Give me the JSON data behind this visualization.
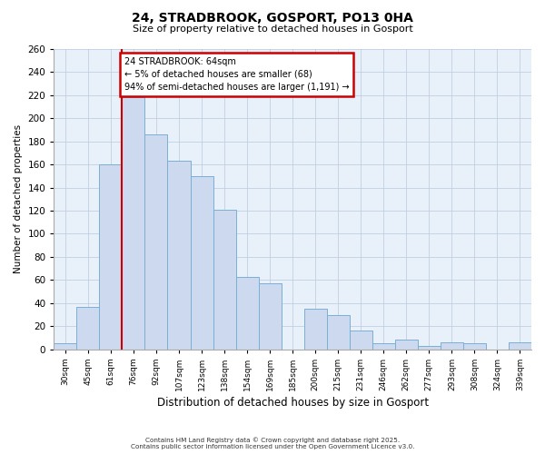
{
  "title": "24, STRADBROOK, GOSPORT, PO13 0HA",
  "subtitle": "Size of property relative to detached houses in Gosport",
  "xlabel": "Distribution of detached houses by size in Gosport",
  "ylabel": "Number of detached properties",
  "bin_labels": [
    "30sqm",
    "45sqm",
    "61sqm",
    "76sqm",
    "92sqm",
    "107sqm",
    "123sqm",
    "138sqm",
    "154sqm",
    "169sqm",
    "185sqm",
    "200sqm",
    "215sqm",
    "231sqm",
    "246sqm",
    "262sqm",
    "277sqm",
    "293sqm",
    "308sqm",
    "324sqm",
    "339sqm"
  ],
  "bar_values": [
    5,
    37,
    160,
    218,
    186,
    163,
    150,
    121,
    63,
    57,
    0,
    35,
    30,
    16,
    5,
    8,
    3,
    6,
    5,
    0,
    6
  ],
  "bar_color": "#ccd9ee",
  "bar_edge_color": "#7bafd4",
  "annotation_title": "24 STRADBROOK: 64sqm",
  "annotation_line1": "← 5% of detached houses are smaller (68)",
  "annotation_line2": "94% of semi-detached houses are larger (1,191) →",
  "annotation_box_color": "#ffffff",
  "annotation_box_edge": "#cc0000",
  "line_color": "#cc0000",
  "background_color": "#ffffff",
  "plot_bg_color": "#e8f0f9",
  "grid_color": "#c0cfe0",
  "ylim": [
    0,
    260
  ],
  "yticks": [
    0,
    20,
    40,
    60,
    80,
    100,
    120,
    140,
    160,
    180,
    200,
    220,
    240,
    260
  ],
  "footer_line1": "Contains HM Land Registry data © Crown copyright and database right 2025.",
  "footer_line2": "Contains public sector information licensed under the Open Government Licence v3.0."
}
